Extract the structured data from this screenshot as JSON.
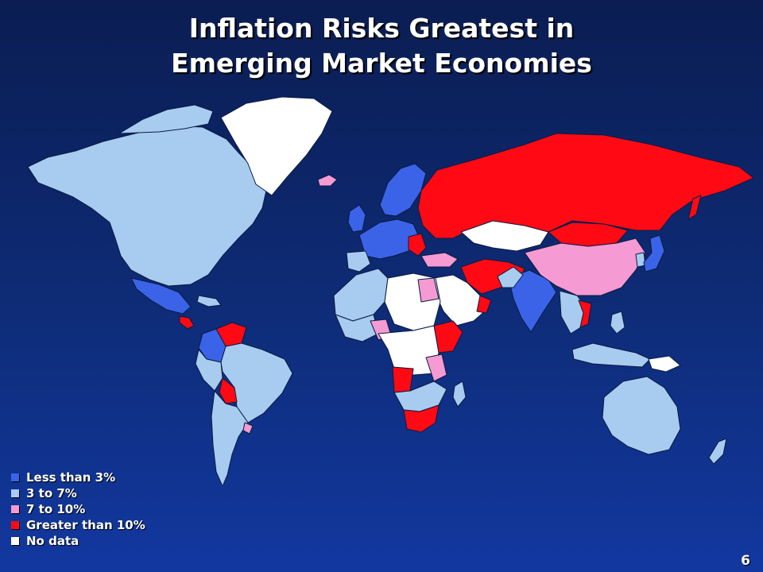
{
  "title": {
    "line1": "Inflation Risks Greatest in",
    "line2": "Emerging Market Economies"
  },
  "colors": {
    "less_than_3": "#3a63e8",
    "3_to_7": "#a8ccf0",
    "7_to_10": "#f59ad2",
    "greater_than_10": "#ff0a14",
    "no_data": "#ffffff"
  },
  "legend": [
    {
      "label": "Less than 3%",
      "color": "#3a63e8"
    },
    {
      "label": "3 to 7%",
      "color": "#a8ccf0"
    },
    {
      "label": "7 to 10%",
      "color": "#f59ad2"
    },
    {
      "label": "Greater than 10%",
      "color": "#ff0a14"
    },
    {
      "label": "No data",
      "color": "#ffffff"
    }
  ],
  "page_number": "6"
}
